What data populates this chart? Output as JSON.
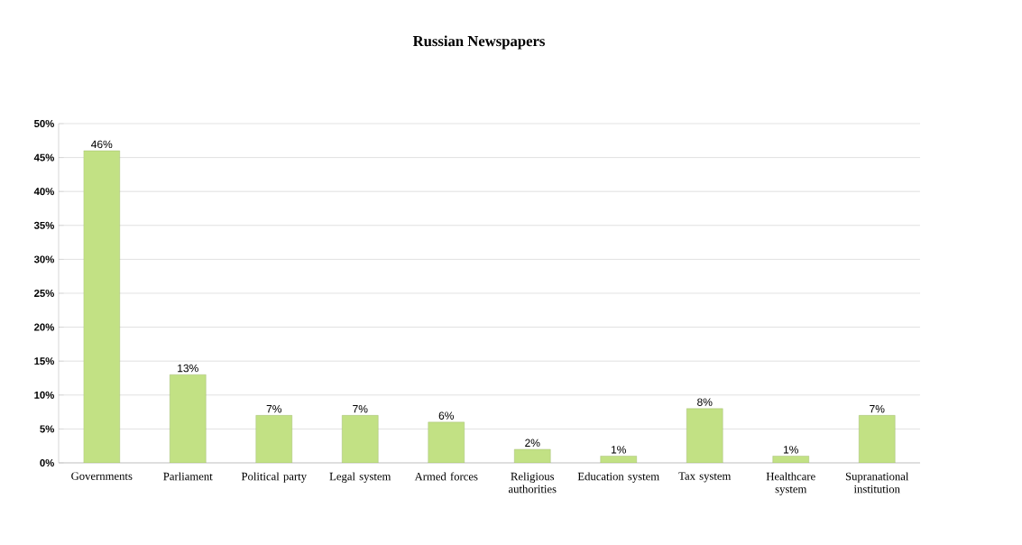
{
  "chart_data": {
    "type": "bar",
    "title": "Russian Newspapers",
    "categories": [
      "Governments",
      "Parliament",
      "Political party",
      "Legal system",
      "Armed forces",
      "Religious authorities",
      "Education system",
      "Tax system",
      "Healthcare system",
      "Supranational institution"
    ],
    "values": [
      46,
      13,
      7,
      7,
      6,
      2,
      1,
      8,
      1,
      7
    ],
    "value_labels": [
      "46%",
      "13%",
      "7%",
      "7%",
      "6%",
      "2%",
      "1%",
      "8%",
      "1%",
      "7%"
    ],
    "color": "#c2e184",
    "ylim": [
      0,
      50
    ],
    "yticks": [
      {
        "value": 0,
        "label": "0%"
      },
      {
        "value": 5,
        "label": "5%"
      },
      {
        "value": 10,
        "label": "10%"
      },
      {
        "value": 15,
        "label": "15%"
      },
      {
        "value": 20,
        "label": "20%"
      },
      {
        "value": 25,
        "label": "25%"
      },
      {
        "value": 30,
        "label": "30%"
      },
      {
        "value": 35,
        "label": "35%"
      },
      {
        "value": 40,
        "label": "40%"
      },
      {
        "value": 45,
        "label": "45%"
      },
      {
        "value": 50,
        "label": "50%"
      }
    ],
    "grid": "y"
  }
}
